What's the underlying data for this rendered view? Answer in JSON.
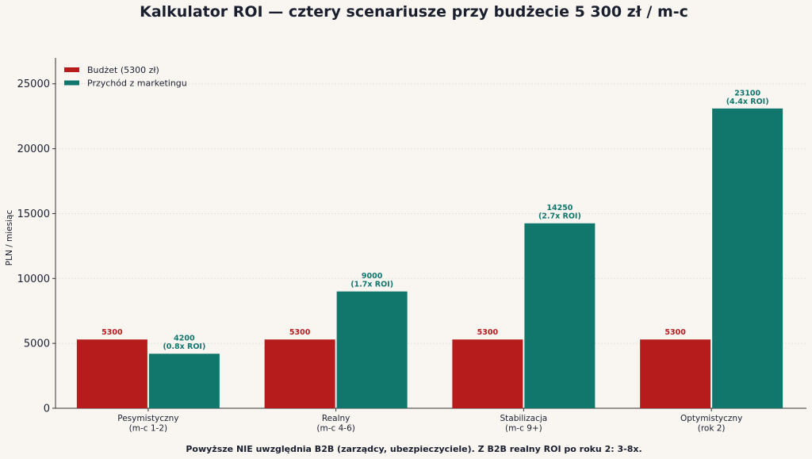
{
  "chart_data": {
    "type": "bar",
    "title": "Kalkulator ROI — cztery scenariusze przy budżecie 5 300 zł / m-c",
    "ylabel": "PLN / miesiąc",
    "xlabel": "",
    "ylim": [
      0,
      27000
    ],
    "yticks": [
      0,
      5000,
      10000,
      15000,
      20000,
      25000
    ],
    "grid": true,
    "legend_position": "top-left",
    "categories": [
      [
        "Pesymistyczny",
        "(m-c 1-2)"
      ],
      [
        "Realny",
        "(m-c 4-6)"
      ],
      [
        "Stabilizacja",
        "(m-c 9+)"
      ],
      [
        "Optymistyczny",
        "(rok 2)"
      ]
    ],
    "series": [
      {
        "name": "Budżet (5300 zł)",
        "color": "#b71c1c",
        "values": [
          5300,
          5300,
          5300,
          5300
        ],
        "labels": [
          [
            "5300"
          ],
          [
            "5300"
          ],
          [
            "5300"
          ],
          [
            "5300"
          ]
        ]
      },
      {
        "name": "Przychód z marketingu",
        "color": "#11766c",
        "values": [
          4200,
          9000,
          14250,
          23100
        ],
        "labels": [
          [
            "4200",
            "(0.8x ROI)"
          ],
          [
            "9000",
            "(1.7x ROI)"
          ],
          [
            "14250",
            "(2.7x ROI)"
          ],
          [
            "23100",
            "(4.4x ROI)"
          ]
        ]
      }
    ],
    "footnote": "Powyższe NIE uwzględnia B2B (zarządcy, ubezpieczyciele). Z B2B realny ROI po roku 2: 3-8x."
  }
}
